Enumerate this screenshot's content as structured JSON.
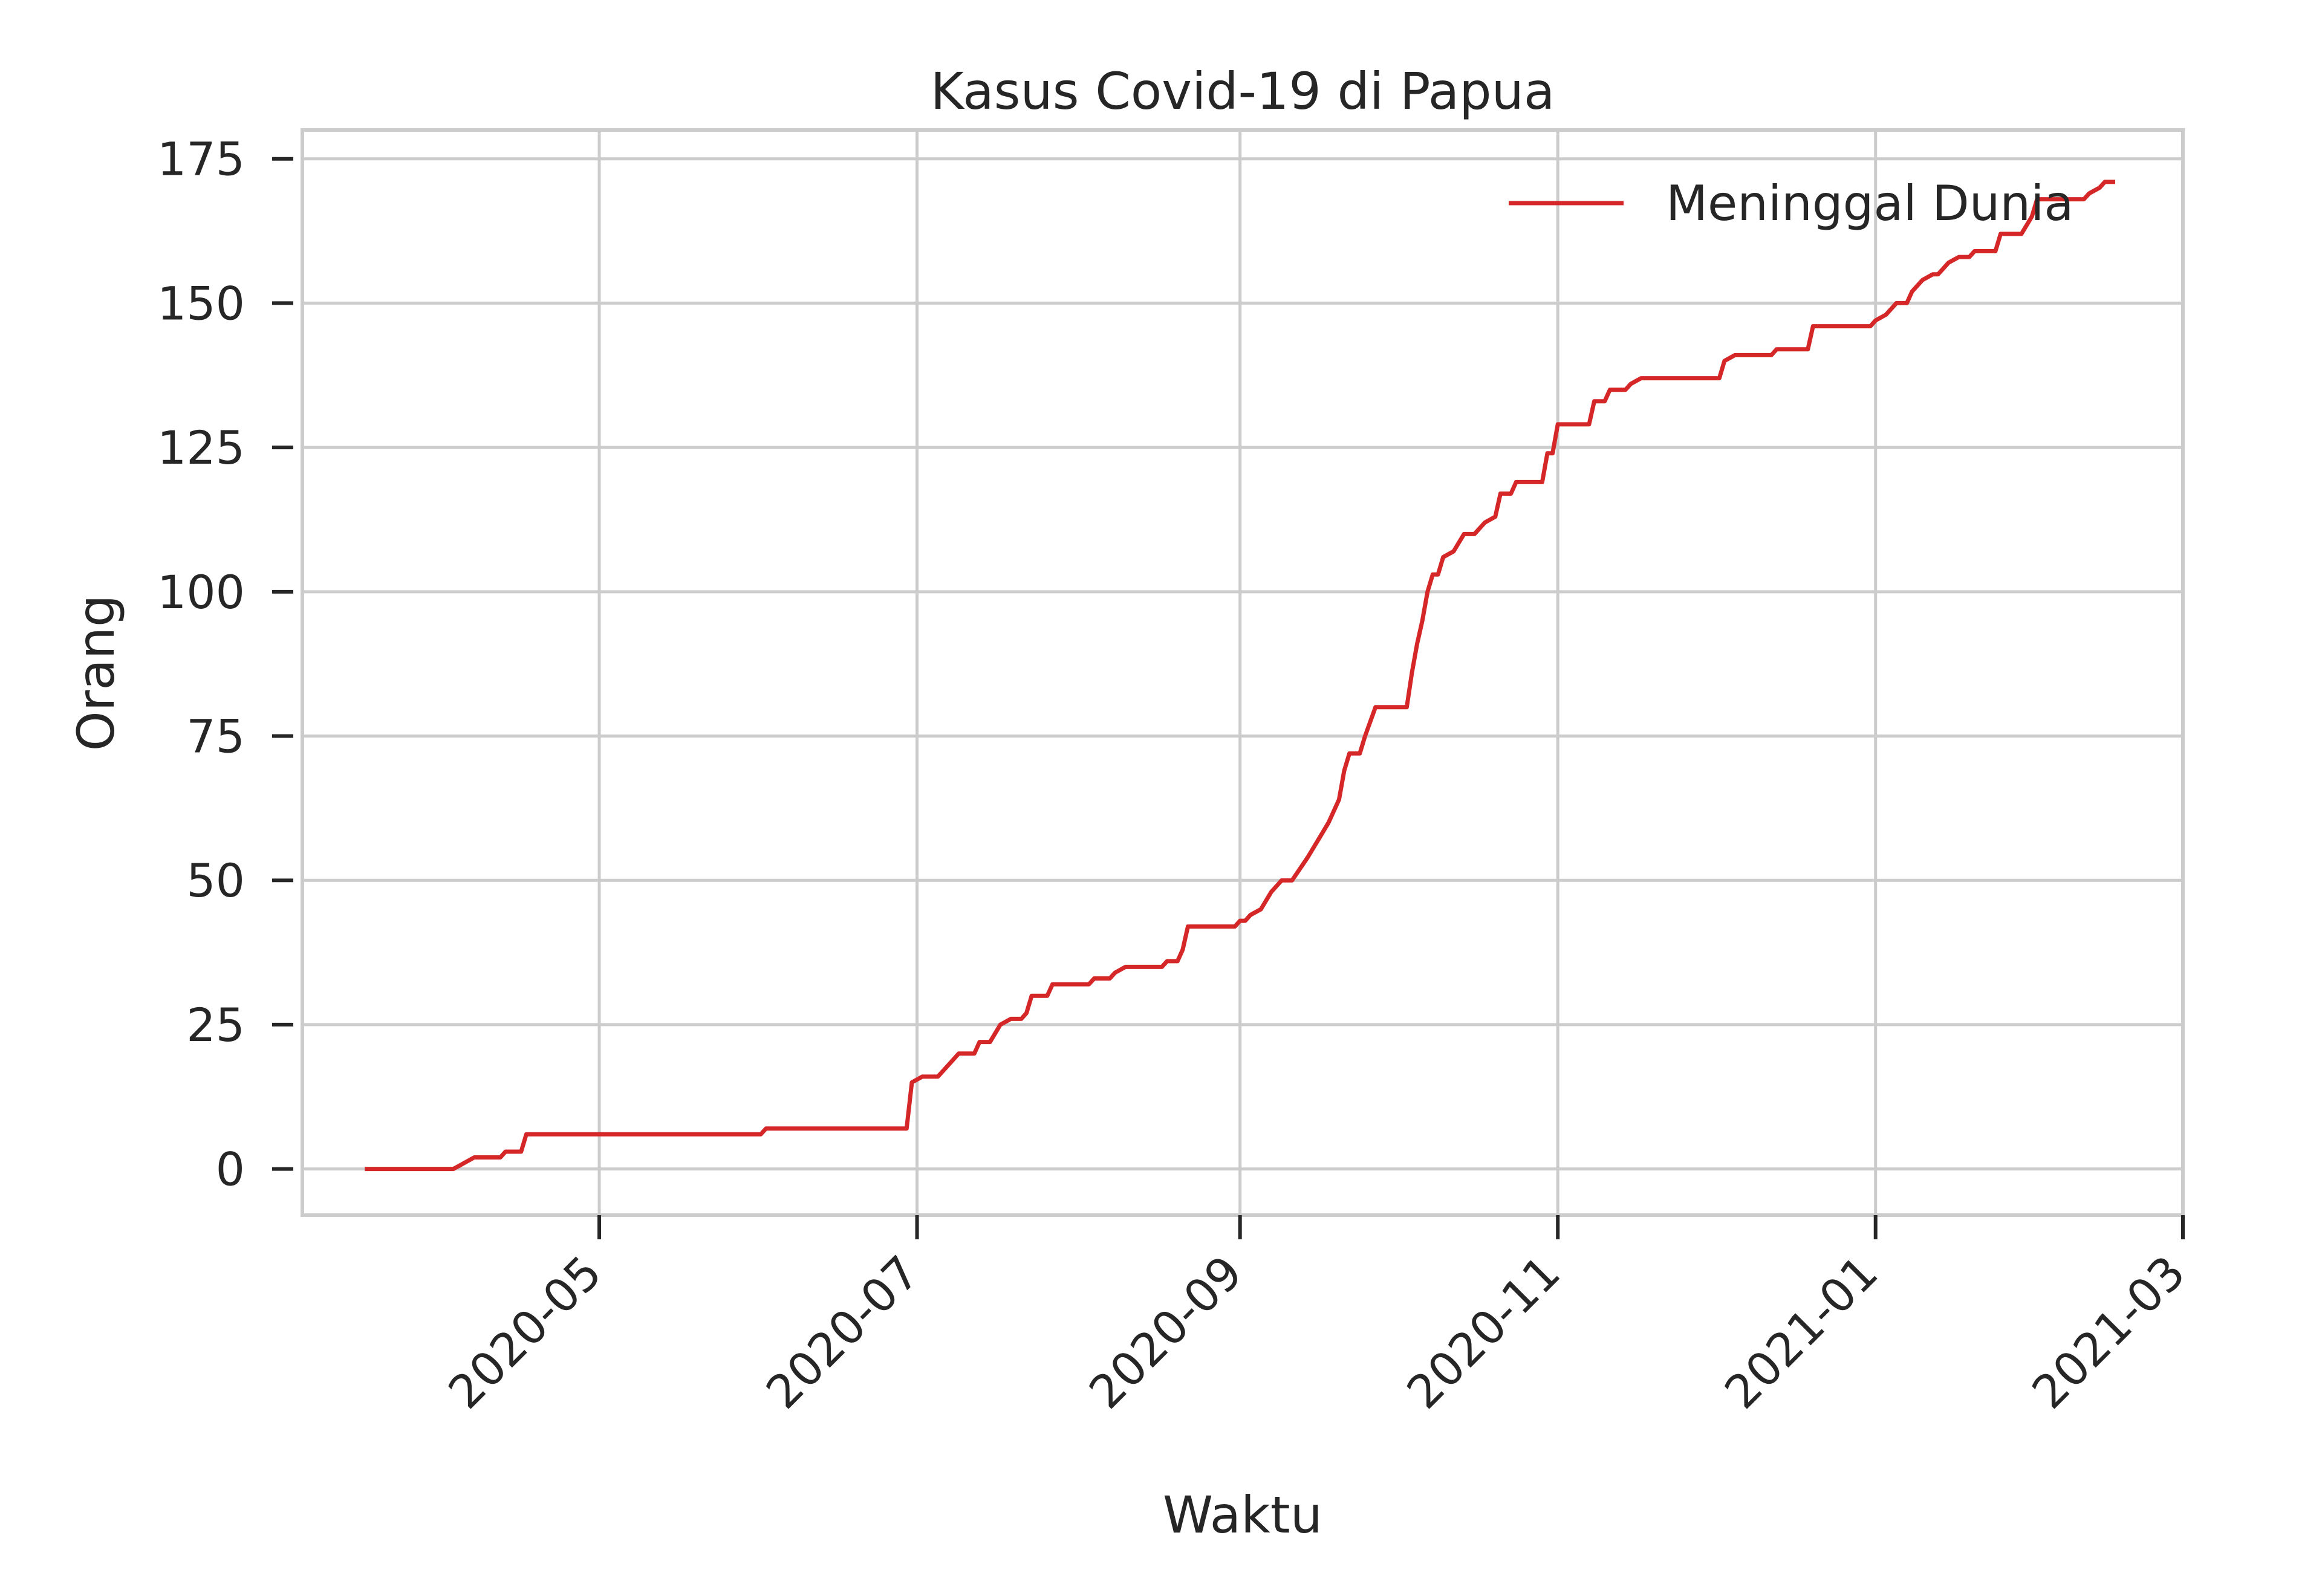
{
  "chart_data": {
    "type": "line",
    "title": "Kasus Covid-19 di Papua",
    "xlabel": "Waktu",
    "ylabel": "Orang",
    "xlim": [
      "2020-03-05",
      "2021-03-01"
    ],
    "ylim": [
      -8,
      180
    ],
    "x_ticks": [
      "2020-05-01",
      "2020-07-01",
      "2020-09-01",
      "2020-11-01",
      "2021-01-01",
      "2021-03-01"
    ],
    "x_tick_labels": [
      "2020-05",
      "2020-07",
      "2020-09",
      "2020-11",
      "2021-01",
      "2021-03"
    ],
    "x_tick_rotation": 45,
    "y_ticks": [
      0,
      25,
      50,
      75,
      100,
      125,
      150,
      175
    ],
    "y_tick_labels": [
      "0",
      "25",
      "50",
      "75",
      "100",
      "125",
      "150",
      "175"
    ],
    "grid": true,
    "legend": {
      "position": "top-right"
    },
    "series": [
      {
        "name": "Meninggal Dunia",
        "color": "#d62728",
        "points": [
          [
            "2020-03-17",
            0
          ],
          [
            "2020-04-03",
            0
          ],
          [
            "2020-04-05",
            1
          ],
          [
            "2020-04-07",
            2
          ],
          [
            "2020-04-12",
            2
          ],
          [
            "2020-04-13",
            3
          ],
          [
            "2020-04-16",
            3
          ],
          [
            "2020-04-17",
            6
          ],
          [
            "2020-06-01",
            6
          ],
          [
            "2020-06-02",
            7
          ],
          [
            "2020-06-29",
            7
          ],
          [
            "2020-06-30",
            15
          ],
          [
            "2020-07-02",
            16
          ],
          [
            "2020-07-05",
            16
          ],
          [
            "2020-07-07",
            18
          ],
          [
            "2020-07-09",
            20
          ],
          [
            "2020-07-12",
            20
          ],
          [
            "2020-07-13",
            22
          ],
          [
            "2020-07-15",
            22
          ],
          [
            "2020-07-17",
            25
          ],
          [
            "2020-07-19",
            26
          ],
          [
            "2020-07-21",
            26
          ],
          [
            "2020-07-22",
            27
          ],
          [
            "2020-07-23",
            30
          ],
          [
            "2020-07-26",
            30
          ],
          [
            "2020-07-27",
            32
          ],
          [
            "2020-08-03",
            32
          ],
          [
            "2020-08-04",
            33
          ],
          [
            "2020-08-07",
            33
          ],
          [
            "2020-08-08",
            34
          ],
          [
            "2020-08-10",
            35
          ],
          [
            "2020-08-17",
            35
          ],
          [
            "2020-08-18",
            36
          ],
          [
            "2020-08-20",
            36
          ],
          [
            "2020-08-21",
            38
          ],
          [
            "2020-08-22",
            42
          ],
          [
            "2020-08-31",
            42
          ],
          [
            "2020-09-01",
            43
          ],
          [
            "2020-09-02",
            43
          ],
          [
            "2020-09-03",
            44
          ],
          [
            "2020-09-05",
            45
          ],
          [
            "2020-09-07",
            48
          ],
          [
            "2020-09-09",
            50
          ],
          [
            "2020-09-11",
            50
          ],
          [
            "2020-09-14",
            54
          ],
          [
            "2020-09-16",
            57
          ],
          [
            "2020-09-18",
            60
          ],
          [
            "2020-09-20",
            64
          ],
          [
            "2020-09-21",
            69
          ],
          [
            "2020-09-22",
            72
          ],
          [
            "2020-09-24",
            72
          ],
          [
            "2020-09-25",
            75
          ],
          [
            "2020-09-27",
            80
          ],
          [
            "2020-10-03",
            80
          ],
          [
            "2020-10-04",
            86
          ],
          [
            "2020-10-05",
            91
          ],
          [
            "2020-10-06",
            95
          ],
          [
            "2020-10-07",
            100
          ],
          [
            "2020-10-08",
            103
          ],
          [
            "2020-10-09",
            103
          ],
          [
            "2020-10-10",
            106
          ],
          [
            "2020-10-12",
            107
          ],
          [
            "2020-10-14",
            110
          ],
          [
            "2020-10-16",
            110
          ],
          [
            "2020-10-18",
            112
          ],
          [
            "2020-10-20",
            113
          ],
          [
            "2020-10-21",
            117
          ],
          [
            "2020-10-23",
            117
          ],
          [
            "2020-10-24",
            119
          ],
          [
            "2020-10-29",
            119
          ],
          [
            "2020-10-30",
            124
          ],
          [
            "2020-10-31",
            124
          ],
          [
            "2020-11-01",
            129
          ],
          [
            "2020-11-07",
            129
          ],
          [
            "2020-11-08",
            133
          ],
          [
            "2020-11-10",
            133
          ],
          [
            "2020-11-11",
            135
          ],
          [
            "2020-11-14",
            135
          ],
          [
            "2020-11-15",
            136
          ],
          [
            "2020-11-17",
            137
          ],
          [
            "2020-12-02",
            137
          ],
          [
            "2020-12-03",
            140
          ],
          [
            "2020-12-05",
            141
          ],
          [
            "2020-12-12",
            141
          ],
          [
            "2020-12-13",
            142
          ],
          [
            "2020-12-19",
            142
          ],
          [
            "2020-12-20",
            146
          ],
          [
            "2020-12-31",
            146
          ],
          [
            "2021-01-01",
            147
          ],
          [
            "2021-01-03",
            148
          ],
          [
            "2021-01-05",
            150
          ],
          [
            "2021-01-07",
            150
          ],
          [
            "2021-01-08",
            152
          ],
          [
            "2021-01-10",
            154
          ],
          [
            "2021-01-12",
            155
          ],
          [
            "2021-01-13",
            155
          ],
          [
            "2021-01-15",
            157
          ],
          [
            "2021-01-17",
            158
          ],
          [
            "2021-01-19",
            158
          ],
          [
            "2021-01-20",
            159
          ],
          [
            "2021-01-24",
            159
          ],
          [
            "2021-01-25",
            162
          ],
          [
            "2021-01-29",
            162
          ],
          [
            "2021-01-31",
            165
          ],
          [
            "2021-02-01",
            168
          ],
          [
            "2021-02-10",
            168
          ],
          [
            "2021-02-11",
            169
          ],
          [
            "2021-02-13",
            170
          ],
          [
            "2021-02-14",
            171
          ],
          [
            "2021-02-16",
            171
          ]
        ]
      }
    ]
  }
}
